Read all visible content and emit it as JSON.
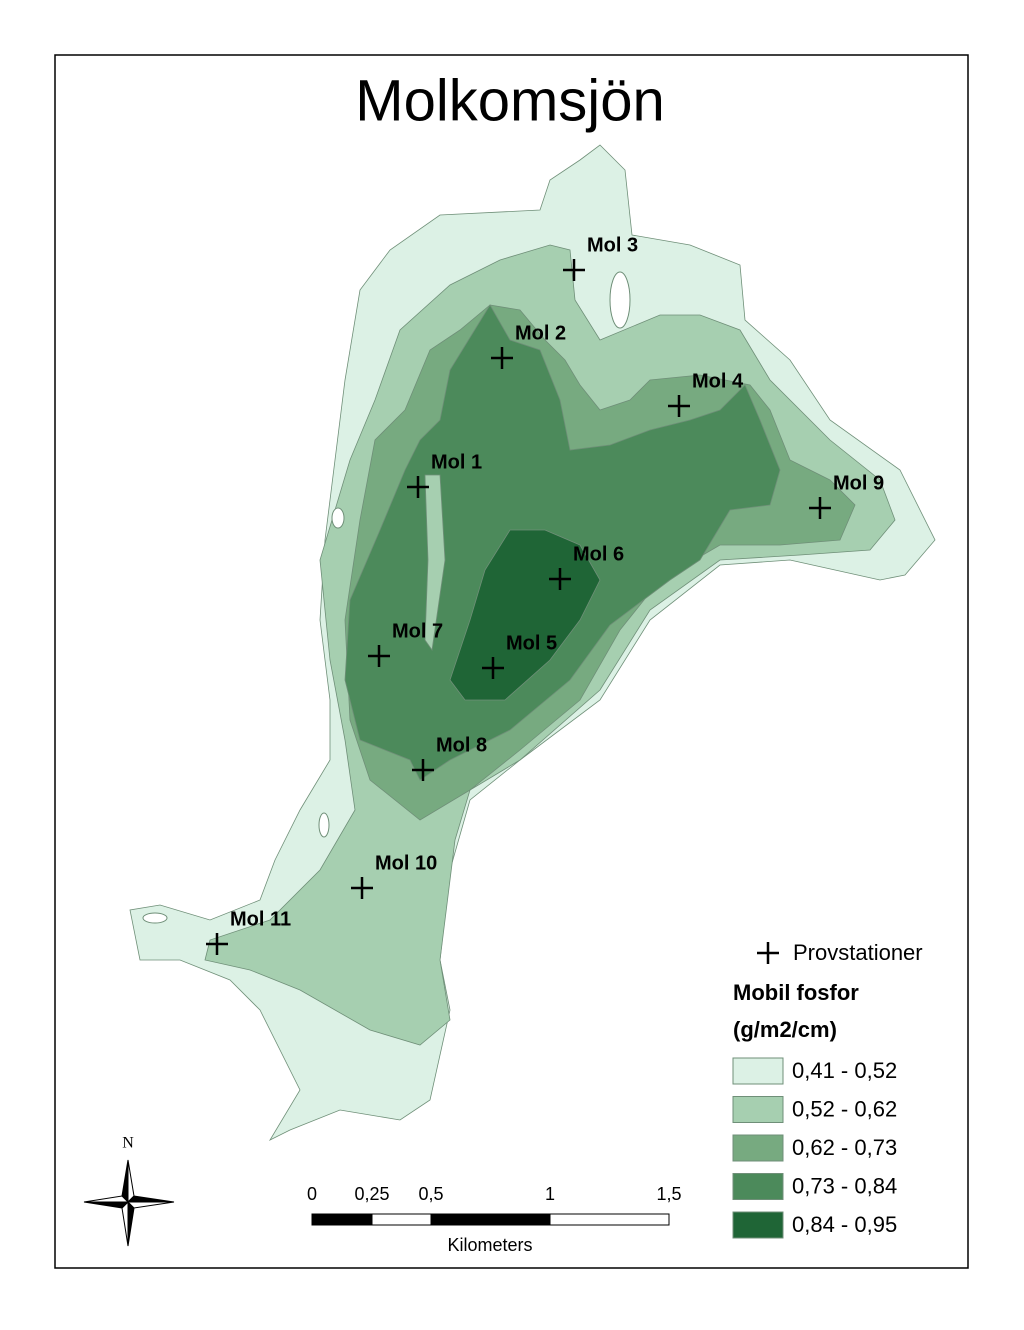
{
  "title": "Molkomsjön",
  "stations": [
    "Mol 1",
    "Mol 2",
    "Mol 3",
    "Mol 4",
    "Mol 5",
    "Mol 6",
    "Mol 7",
    "Mol 8",
    "Mol 9",
    "Mol 10",
    "Mol 11"
  ],
  "legend": {
    "stations_label": "Provstationer",
    "title_line1": "Mobil fosfor",
    "title_line2": "(g/m2/cm)",
    "classes": [
      {
        "label": "0,41 - 0,52",
        "color": "#dcf1e5"
      },
      {
        "label": "0,52 - 0,62",
        "color": "#a6cfb0"
      },
      {
        "label": "0,62 - 0,73",
        "color": "#77aa80"
      },
      {
        "label": "0,73 - 0,84",
        "color": "#4c8a5b"
      },
      {
        "label": "0,84 - 0,95",
        "color": "#1f6536"
      }
    ]
  },
  "north_label": "N",
  "scale_bar": {
    "labels": [
      "0",
      "0,25",
      "0,5",
      "1",
      "1,5"
    ],
    "unit": "Kilometers"
  }
}
